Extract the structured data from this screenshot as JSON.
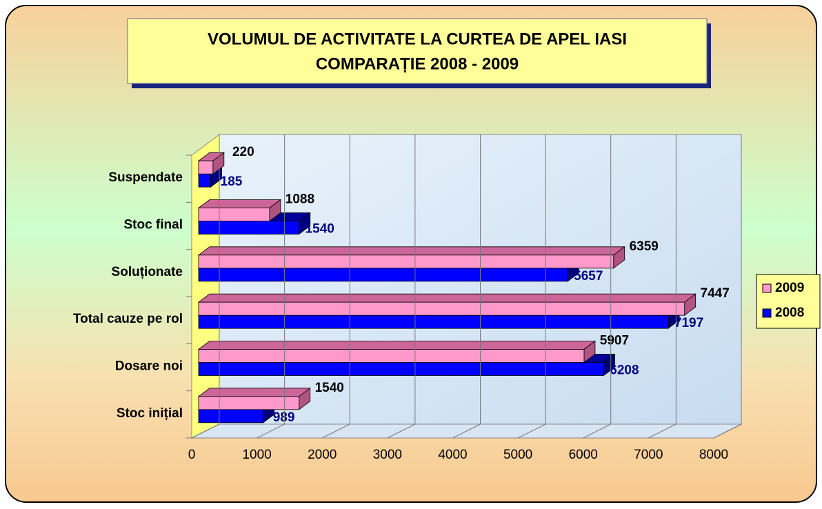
{
  "chart_data": {
    "type": "bar3d_horizontal",
    "title": [
      "VOLUMUL DE ACTIVITATE LA CURTEA DE APEL IASI",
      "COMPARAȚIE 2008 - 2009"
    ],
    "categories": [
      "Stoc inițial",
      "Dosare noi ",
      "Total cauze pe rol",
      "Soluționate",
      "Stoc final",
      "Suspendate"
    ],
    "series": [
      {
        "name": "2009",
        "color": "#ff99cc",
        "values": [
          1540,
          5907,
          7447,
          6359,
          1088,
          220
        ]
      },
      {
        "name": "2008",
        "color": "#0000ff",
        "values": [
          989,
          6208,
          7197,
          5657,
          1540,
          185
        ]
      }
    ],
    "xlim": [
      0,
      8000
    ],
    "xticks": [
      0,
      1000,
      2000,
      3000,
      4000,
      5000,
      6000,
      7000,
      8000
    ],
    "grid": true,
    "legend": "right"
  }
}
